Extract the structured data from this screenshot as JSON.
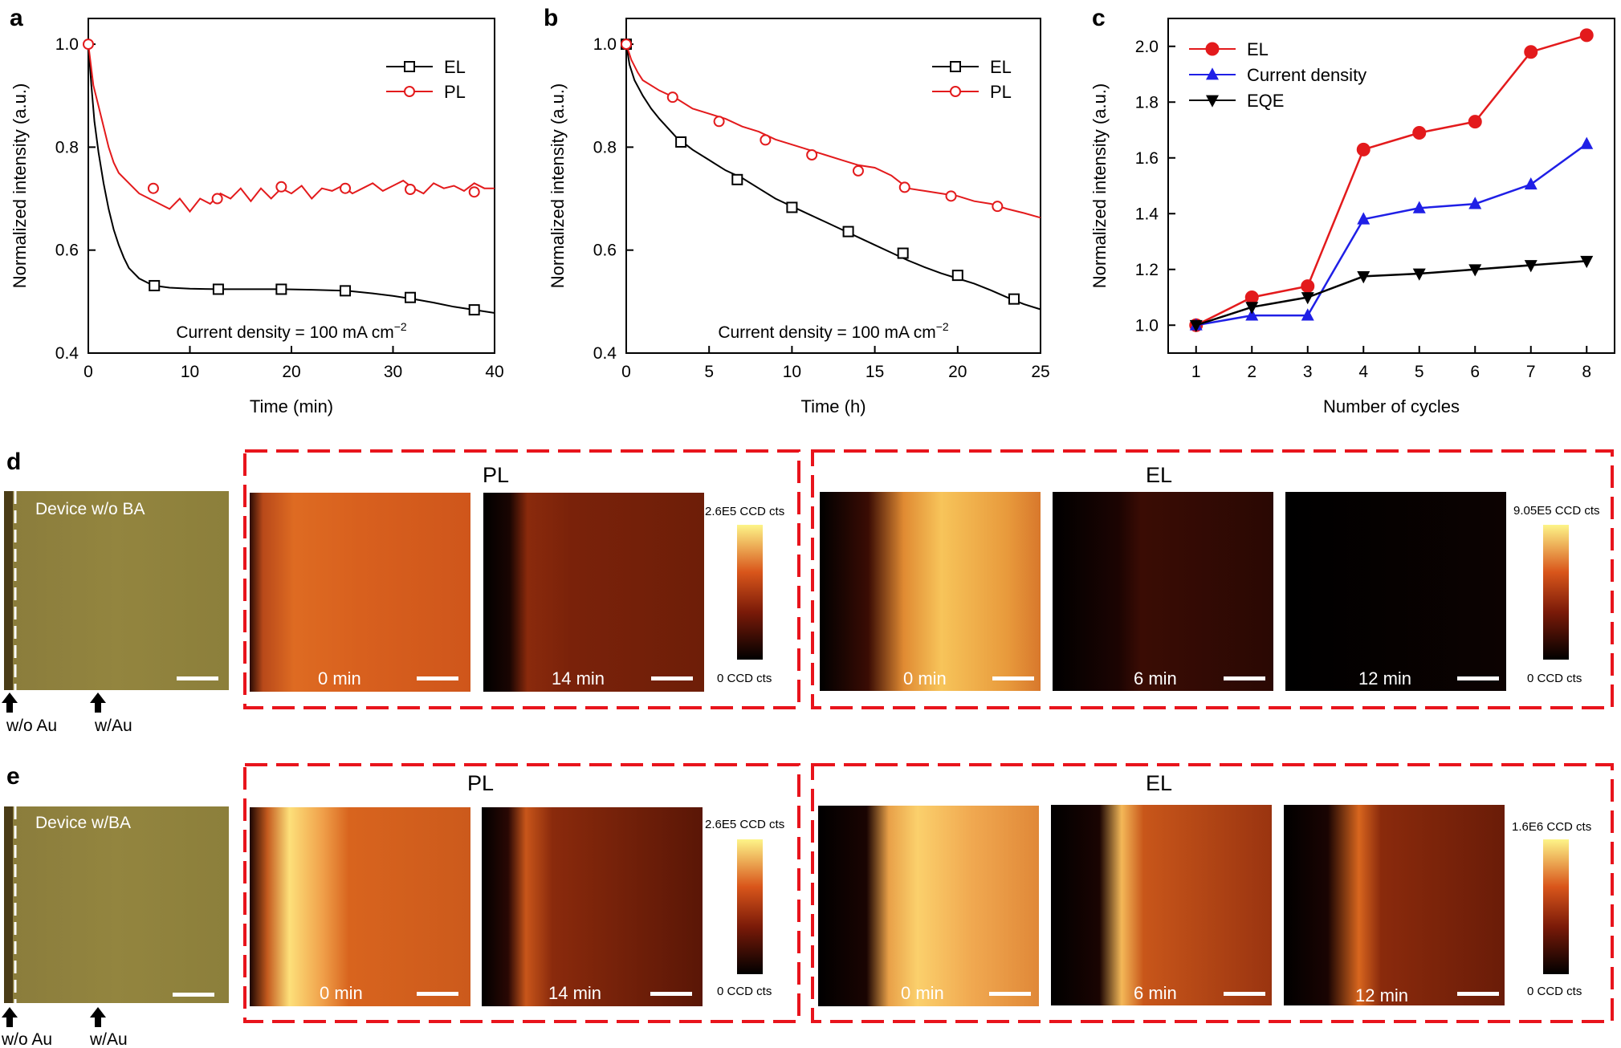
{
  "panel_labels": {
    "a": "a",
    "b": "b",
    "c": "c",
    "d": "d",
    "e": "e"
  },
  "chart_data": [
    {
      "panel": "a",
      "type": "line",
      "ylabel": "Normalized intensity (a.u.)",
      "xlabel": "Time (min)",
      "xlim": [
        0,
        40
      ],
      "ylim": [
        0.4,
        1.05
      ],
      "xticks": [
        0,
        10,
        20,
        30,
        40
      ],
      "yticks": [
        0.4,
        0.6,
        0.8,
        1.0
      ],
      "ytick_labels": [
        "0.4",
        "0.6",
        "0.8",
        "1.0"
      ],
      "annotation": "Current density = 100 mA cm",
      "annotation_sup": "−2",
      "legend_position": "top-right",
      "series": [
        {
          "name": "EL",
          "color": "#000000",
          "marker": "square",
          "x": [
            0,
            0.3,
            0.6,
            1,
            1.5,
            2,
            2.5,
            3,
            3.5,
            4,
            5,
            6,
            6.5,
            8,
            10,
            13,
            16,
            19,
            22,
            25.5,
            28,
            30,
            32,
            34,
            36,
            38,
            40
          ],
          "y": [
            1.0,
            0.92,
            0.85,
            0.79,
            0.73,
            0.68,
            0.64,
            0.61,
            0.585,
            0.565,
            0.545,
            0.535,
            0.531,
            0.527,
            0.525,
            0.524,
            0.524,
            0.524,
            0.523,
            0.521,
            0.516,
            0.511,
            0.505,
            0.498,
            0.49,
            0.484,
            0.478
          ],
          "marker_x": [
            6.5,
            12.8,
            19.0,
            25.3,
            31.7,
            38.0
          ],
          "marker_y": [
            0.531,
            0.524,
            0.524,
            0.521,
            0.508,
            0.484
          ]
        },
        {
          "name": "PL",
          "color": "#e31a1c",
          "marker": "circle",
          "x": [
            0,
            0.5,
            1,
            1.5,
            2,
            2.5,
            3,
            4,
            5,
            6,
            7,
            8,
            9,
            10,
            11,
            12,
            13,
            14,
            15,
            16,
            17,
            18,
            19,
            20,
            21,
            22,
            23,
            24,
            25,
            26,
            27,
            28,
            29,
            30,
            31,
            32,
            33,
            34,
            35,
            36,
            37,
            38,
            39,
            40
          ],
          "y": [
            1.0,
            0.92,
            0.88,
            0.84,
            0.8,
            0.77,
            0.75,
            0.73,
            0.71,
            0.7,
            0.69,
            0.68,
            0.7,
            0.675,
            0.7,
            0.69,
            0.71,
            0.7,
            0.72,
            0.695,
            0.72,
            0.7,
            0.72,
            0.71,
            0.725,
            0.7,
            0.72,
            0.715,
            0.725,
            0.71,
            0.72,
            0.73,
            0.715,
            0.725,
            0.735,
            0.72,
            0.71,
            0.73,
            0.72,
            0.725,
            0.715,
            0.73,
            0.72,
            0.72
          ],
          "marker_x": [
            0,
            6.4,
            12.7,
            19.0,
            25.3,
            31.7,
            38.0
          ],
          "marker_y": [
            1.0,
            0.72,
            0.7,
            0.723,
            0.72,
            0.718,
            0.713
          ]
        }
      ]
    },
    {
      "panel": "b",
      "type": "line",
      "ylabel": "Normalized intensity (a.u.)",
      "xlabel": "Time (h)",
      "xlim": [
        0,
        25
      ],
      "ylim": [
        0.4,
        1.05
      ],
      "xticks": [
        0,
        5,
        10,
        15,
        20,
        25
      ],
      "yticks": [
        0.4,
        0.6,
        0.8,
        1.0
      ],
      "ytick_labels": [
        "0.4",
        "0.6",
        "0.8",
        "1.0"
      ],
      "annotation": "Current density = 100 mA cm",
      "annotation_sup": "−2",
      "legend_position": "top-right",
      "series": [
        {
          "name": "EL",
          "color": "#000000",
          "marker": "square",
          "x": [
            0,
            0.2,
            0.5,
            1,
            1.5,
            2,
            3,
            4,
            5,
            6,
            7,
            8,
            9,
            10,
            11,
            12,
            13,
            14,
            15,
            16,
            17,
            18,
            19,
            20,
            21,
            22,
            23,
            24,
            25
          ],
          "y": [
            1.0,
            0.96,
            0.93,
            0.9,
            0.875,
            0.855,
            0.82,
            0.795,
            0.775,
            0.755,
            0.74,
            0.72,
            0.7,
            0.685,
            0.67,
            0.655,
            0.64,
            0.625,
            0.61,
            0.595,
            0.58,
            0.567,
            0.555,
            0.545,
            0.535,
            0.522,
            0.508,
            0.495,
            0.485
          ],
          "marker_x": [
            0,
            3.3,
            6.7,
            10.0,
            13.4,
            16.7,
            20.0,
            23.4
          ],
          "marker_y": [
            1.0,
            0.81,
            0.737,
            0.683,
            0.636,
            0.594,
            0.551,
            0.505
          ]
        },
        {
          "name": "PL",
          "color": "#e31a1c",
          "marker": "circle",
          "x": [
            0,
            0.3,
            0.7,
            1,
            2,
            3,
            4,
            5,
            6,
            7,
            8,
            9,
            10,
            11,
            12,
            13,
            14,
            15,
            16,
            16.6,
            17,
            18,
            19,
            20,
            21,
            22,
            23,
            24,
            25
          ],
          "y": [
            1.0,
            0.97,
            0.945,
            0.93,
            0.91,
            0.895,
            0.875,
            0.865,
            0.855,
            0.84,
            0.83,
            0.815,
            0.805,
            0.795,
            0.785,
            0.775,
            0.765,
            0.76,
            0.745,
            0.73,
            0.72,
            0.715,
            0.71,
            0.705,
            0.695,
            0.69,
            0.68,
            0.672,
            0.663
          ],
          "marker_x": [
            0,
            2.8,
            5.6,
            8.4,
            11.2,
            14.0,
            16.8,
            19.6,
            22.4
          ],
          "marker_y": [
            1.0,
            0.897,
            0.85,
            0.814,
            0.785,
            0.754,
            0.722,
            0.705,
            0.685
          ]
        }
      ]
    },
    {
      "panel": "c",
      "type": "line",
      "ylabel": "Normalized intensity (a.u.)",
      "xlabel": "Number of cycles",
      "xlim": [
        0.5,
        8.5
      ],
      "ylim": [
        0.9,
        2.1
      ],
      "xticks": [
        1,
        2,
        3,
        4,
        5,
        6,
        7,
        8
      ],
      "yticks": [
        1.0,
        1.2,
        1.4,
        1.6,
        1.8,
        2.0
      ],
      "ytick_labels": [
        "1.0",
        "1.2",
        "1.4",
        "1.6",
        "1.8",
        "2.0"
      ],
      "legend_position": "top-left",
      "categories": [
        1,
        2,
        3,
        4,
        5,
        6,
        7,
        8
      ],
      "series": [
        {
          "name": "EL",
          "color": "#e31a1c",
          "marker": "circle",
          "values": [
            1.0,
            1.1,
            1.14,
            1.63,
            1.69,
            1.73,
            1.98,
            2.04
          ]
        },
        {
          "name": "Current density",
          "color": "#1f1fe6",
          "marker": "triangle-up",
          "values": [
            1.0,
            1.035,
            1.035,
            1.38,
            1.42,
            1.435,
            1.505,
            1.65
          ]
        },
        {
          "name": "EQE",
          "color": "#000000",
          "marker": "triangle-down",
          "values": [
            1.0,
            1.065,
            1.1,
            1.175,
            1.185,
            1.2,
            1.215,
            1.23
          ]
        }
      ]
    }
  ],
  "maps": {
    "d": {
      "photo_label": "Device w/o BA",
      "arrow_left_label": "w/o Au",
      "arrow_right_label": "w/Au",
      "pl_title": "PL",
      "el_title": "EL",
      "pl_frames": [
        "0 min",
        "14 min"
      ],
      "el_frames": [
        "0 min",
        "6 min",
        "12 min"
      ],
      "pl_scale_max": "2.6E5 CCD cts",
      "pl_scale_min": "0 CCD cts",
      "el_scale_max": "9.05E5 CCD cts",
      "el_scale_min": "0 CCD cts"
    },
    "e": {
      "photo_label": "Device w/BA",
      "arrow_left_label": "w/o Au",
      "arrow_right_label": "w/Au",
      "pl_title": "PL",
      "el_title": "EL",
      "pl_frames": [
        "0 min",
        "14 min"
      ],
      "el_frames": [
        "0 min",
        "6 min",
        "12 min"
      ],
      "pl_scale_max": "2.6E5 CCD cts",
      "pl_scale_min": "0 CCD cts",
      "el_scale_max": "1.6E6 CCD cts",
      "el_scale_min": "0 CCD cts"
    }
  },
  "colors": {
    "frame_dash": "#e8141c",
    "photo": "#8a7b3a",
    "hot_dark": "#000000",
    "hot_mid": "#c0401a",
    "hot_light": "#fdf488"
  }
}
